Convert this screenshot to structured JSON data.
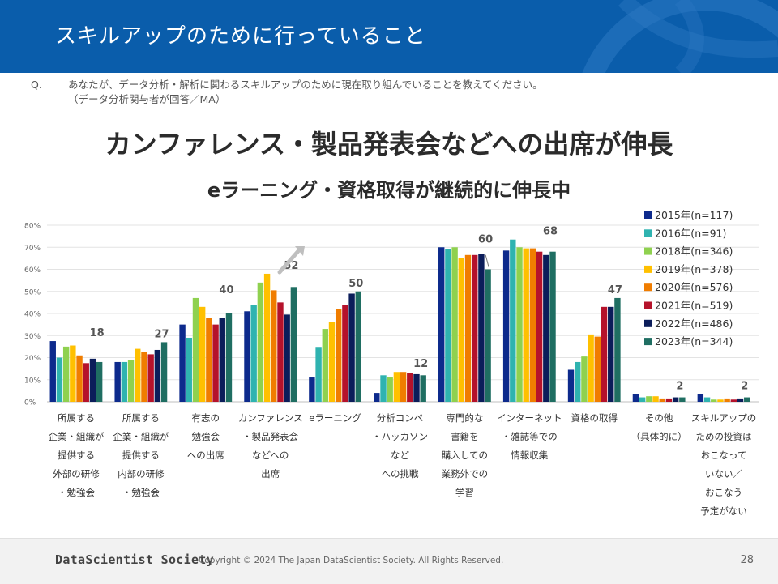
{
  "header": {
    "title": "スキルアップのために行っていること"
  },
  "question": {
    "mark": "Q.",
    "text": "あなたが、データ分析・解析に関わるスキルアップのために現在取り組んでいることを教えてください。",
    "note": "（データ分析関与者が回答／MA）"
  },
  "headline": {
    "line1": "カンファレンス・製品発表会などへの出席が伸長",
    "line2": "eラーニング・資格取得が継続的に伸長中"
  },
  "footer": {
    "logo": "DataScientist Society",
    "copyright": "Copyright © 2024  The Japan DataScientist Society. All Rights Reserved.",
    "page": "28"
  },
  "chart_data": {
    "type": "bar",
    "ylim": [
      0,
      80
    ],
    "yticks": [
      0,
      10,
      20,
      30,
      40,
      50,
      60,
      70,
      80
    ],
    "ytick_suffix": "%",
    "grid": true,
    "legend_position": "top-right",
    "categories": [
      [
        "所属する",
        "企業・組織が",
        "提供する",
        "外部の研修",
        "・勉強会"
      ],
      [
        "所属する",
        "企業・組織が",
        "提供する",
        "内部の研修",
        "・勉強会"
      ],
      [
        "有志の",
        "勉強会",
        "への出席"
      ],
      [
        "カンファレンス",
        "・製品発表会",
        "などへの",
        "出席"
      ],
      [
        "eラーニング"
      ],
      [
        "分析コンペ",
        "・ハッカソン",
        "など",
        "への挑戦"
      ],
      [
        "専門的な",
        "書籍を",
        "購入しての",
        "業務外での",
        "学習"
      ],
      [
        "インターネット",
        "・雑誌等での",
        "情報収集"
      ],
      [
        "資格の取得"
      ],
      [
        "その他",
        "（具体的に）"
      ],
      [
        "スキルアップの",
        "ための投資は",
        "おこなって",
        "いない／",
        "おこなう",
        "予定がない"
      ]
    ],
    "series": [
      {
        "name": "2015年(n=117)",
        "color": "#0d2a8c",
        "values": [
          27.5,
          18,
          35,
          41,
          11,
          4,
          70,
          68.5,
          14.5,
          3.5,
          3.5
        ]
      },
      {
        "name": "2016年(n=91)",
        "color": "#2fb3b0",
        "values": [
          20,
          18,
          29,
          44,
          24.5,
          12,
          69,
          73.5,
          18,
          2,
          2
        ]
      },
      {
        "name": "2018年(n=346)",
        "color": "#8fd14f",
        "values": [
          25,
          19,
          47,
          54,
          33,
          11,
          70,
          70,
          20.5,
          2.5,
          1
        ]
      },
      {
        "name": "2019年(n=378)",
        "color": "#ffc000",
        "values": [
          25.5,
          24,
          43,
          58,
          36,
          13.5,
          65,
          69.5,
          30.5,
          2.5,
          1
        ]
      },
      {
        "name": "2020年(n=576)",
        "color": "#f07d00",
        "values": [
          21,
          22.5,
          38,
          50.5,
          42,
          13.5,
          66.5,
          69.5,
          29.5,
          1.5,
          1.5
        ]
      },
      {
        "name": "2021年(n=519)",
        "color": "#b5122b",
        "values": [
          17.5,
          21.5,
          35,
          45,
          44,
          13,
          66.5,
          68,
          43,
          1.5,
          1
        ]
      },
      {
        "name": "2022年(n=486)",
        "color": "#0b1d5a",
        "values": [
          19.5,
          23.5,
          38,
          39.5,
          49,
          12.5,
          67,
          66.5,
          43,
          2,
          1.5
        ]
      },
      {
        "name": "2023年(n=344)",
        "color": "#1f6e62",
        "values": [
          18,
          27,
          40,
          52,
          50,
          12,
          60,
          68,
          47,
          2,
          2
        ]
      }
    ],
    "data_labels": [
      "18",
      "27",
      "40",
      "52",
      "50",
      "12",
      "60",
      "68",
      "47",
      "2",
      "2"
    ]
  }
}
